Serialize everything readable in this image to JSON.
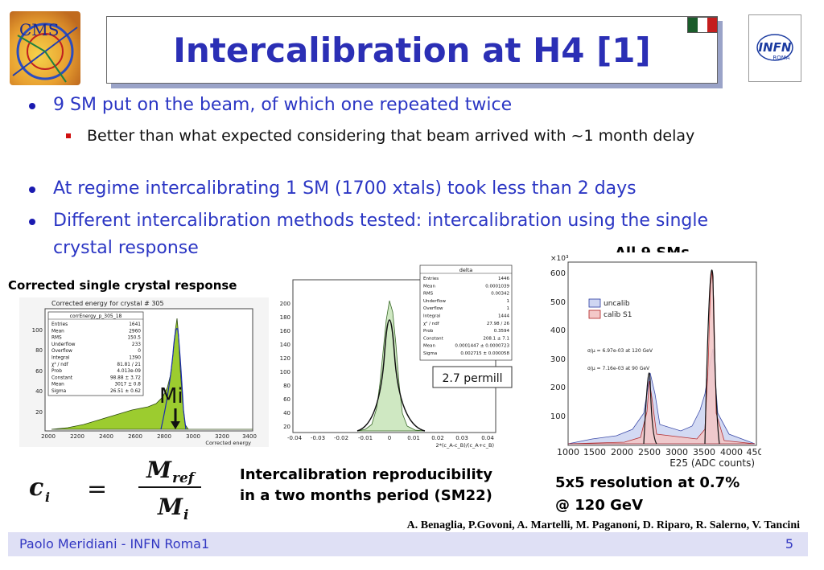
{
  "header": {
    "title": "Intercalibration at H4 [1]",
    "cms_logo_text": "CMS",
    "infn_logo_text": "INFN",
    "infn_logo_subtext": "ROMA",
    "flag_colors": [
      "#1a5c2a",
      "#ffffff",
      "#c41e1e"
    ]
  },
  "bullets": [
    {
      "text": "9 SM put on the beam, of which one repeated twice",
      "sub": [
        "Better than what expected considering that beam arrived with ~1 month delay"
      ]
    },
    {
      "text": "At regime intercalibrating 1 SM (1700 xtals) took less than 2 days",
      "sub": []
    },
    {
      "text": "Different intercalibration methods tested: intercalibration using the single crystal response",
      "sub": []
    }
  ],
  "left_panel": {
    "caption": "Corrected single crystal response",
    "plot_title": "Corrected energy for crystal # 305",
    "stats_title": "corrEnergy_p_305_18",
    "stats": [
      [
        "Entries",
        "1641"
      ],
      [
        "Mean",
        "2960"
      ],
      [
        "RMS",
        "150.5"
      ],
      [
        "Underflow",
        "233"
      ],
      [
        "Overflow",
        "0"
      ],
      [
        "Integral",
        "1390"
      ],
      [
        "χ² / ndf",
        "81.81 / 21"
      ],
      [
        "Prob",
        "4.013e-09"
      ],
      [
        "Constant",
        "98.88 ± 3.72"
      ],
      [
        "Mean",
        "3017 ± 0.8"
      ],
      [
        "Sigma",
        "26.51 ± 0.62"
      ]
    ],
    "marker_label": "Mi",
    "x_axis_label": "Corrected energy",
    "x_ticks": [
      "2000",
      "2200",
      "2400",
      "2600",
      "2800",
      "3000",
      "3200",
      "3400"
    ],
    "y_ticks": [
      "100",
      "80",
      "60",
      "40",
      "20"
    ]
  },
  "middle_panel": {
    "stats_title": "delta",
    "stats": [
      [
        "Entries",
        "1446"
      ],
      [
        "Mean",
        "0.0001039"
      ],
      [
        "RMS",
        "0.00342"
      ],
      [
        "Underflow",
        "1"
      ],
      [
        "Overflow",
        "1"
      ],
      [
        "Integral",
        "1444"
      ],
      [
        "χ² / ndf",
        "27.98 / 26"
      ],
      [
        "Prob",
        "0.3594"
      ],
      [
        "Constant",
        "208.1 ± 7.1"
      ],
      [
        "Mean",
        "0.0001447 ± 0.0000723"
      ],
      [
        "Sigma",
        "0.002715 ± 0.000058"
      ]
    ],
    "annotation": "2.7 permill",
    "x_axis_label": "2*(c_A-c_B)/(c_A+c_B)",
    "x_ticks": [
      "-0.04",
      "-0.03",
      "-0.02",
      "-0.01",
      "0",
      "0.01",
      "0.02",
      "0.03",
      "0.04"
    ],
    "y_ticks": [
      "200",
      "180",
      "160",
      "140",
      "120",
      "100",
      "80",
      "60",
      "40",
      "20"
    ],
    "caption_line1": "Intercalibration reproducibility",
    "caption_line2": "in a two months period (SM22)"
  },
  "right_panel": {
    "title": "All 9 SMs",
    "exponent": "×10³",
    "legend": [
      "uncalib",
      "calib S1"
    ],
    "annotation1": "σ/μ = 6.97e-03 at 120 GeV",
    "annotation2": "σ/μ = 7.16e-03 at 90 GeV",
    "x_axis_label": "E25 (ADC counts)",
    "x_ticks": [
      "1000",
      "1500",
      "2000",
      "2500",
      "3000",
      "3500",
      "4000",
      "450"
    ],
    "y_ticks": [
      "600",
      "500",
      "400",
      "300",
      "200",
      "100"
    ],
    "caption_line1": "5x5 resolution at 0.7%",
    "caption_line2": "@ 120 GeV"
  },
  "formula": {
    "lhs": "c",
    "lhs_sub": "i",
    "num": "M",
    "num_sub": "ref",
    "den": "M",
    "den_sub": "i"
  },
  "authors": "A. Benaglia, P.Govoni, A. Martelli, M. Paganoni,  D. Riparo, R. Salerno, V. Tancini",
  "footer": {
    "left": "Paolo Meridiani  - INFN Roma1",
    "page": "5"
  }
}
